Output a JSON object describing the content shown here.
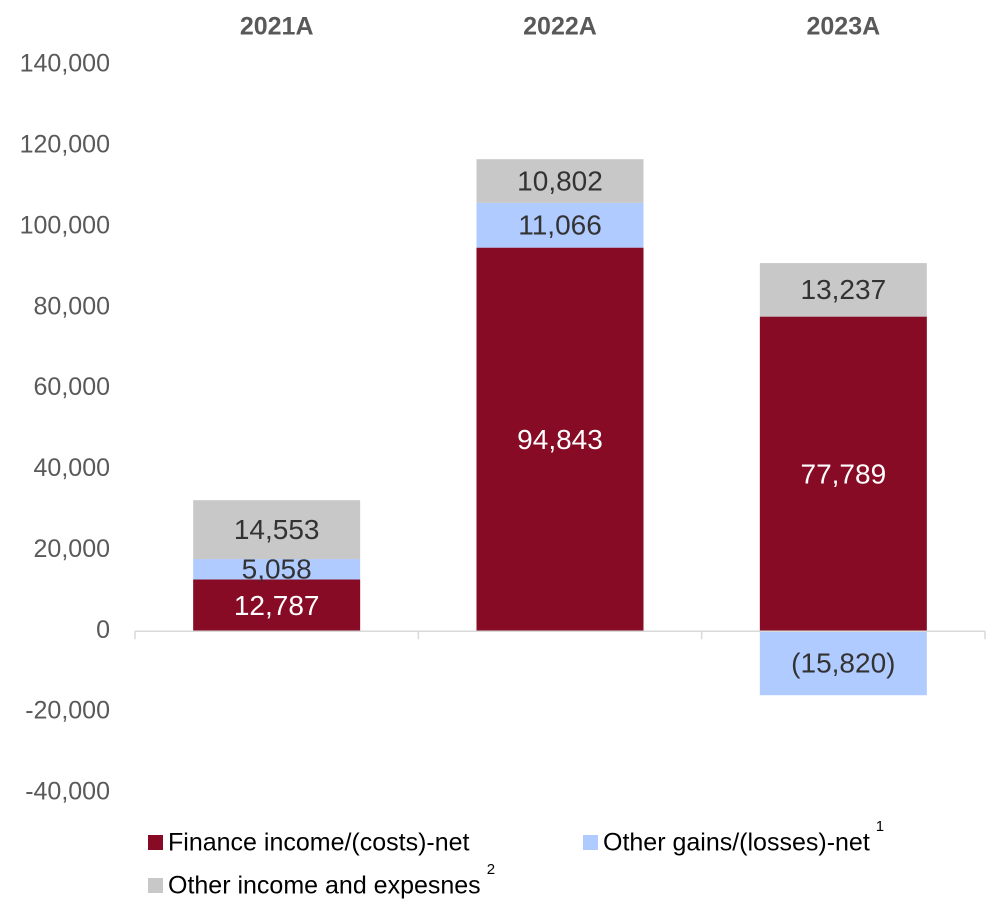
{
  "chart_data": {
    "type": "stacked_bar",
    "categories": [
      "2021A",
      "2022A",
      "2023A"
    ],
    "series": [
      {
        "name": "Finance income/(costs)-net",
        "color": "#870b24",
        "label_color": "#ffffff",
        "values": [
          12787,
          94843,
          77789
        ],
        "value_labels": [
          "12,787",
          "94,843",
          "77,789"
        ]
      },
      {
        "name": "Other gains/(losses)-net",
        "note": "1",
        "color": "#b0cbff",
        "label_color": "#333333",
        "values": [
          5058,
          11066,
          -15820
        ],
        "value_labels": [
          "5,058",
          "11,066",
          "(15,820)"
        ]
      },
      {
        "name": "Other income and expesnes",
        "note": "2",
        "color": "#c8c8c8",
        "label_color": "#333333",
        "values": [
          14553,
          10802,
          13237
        ],
        "value_labels": [
          "14,553",
          "10,802",
          "13,237"
        ]
      }
    ],
    "ylim": [
      -40000,
      140000
    ],
    "yticks": [
      {
        "value": -40000,
        "label": "-40,000"
      },
      {
        "value": -20000,
        "label": "-20,000"
      },
      0,
      {
        "value": 20000,
        "label": "20,000"
      },
      {
        "value": 40000,
        "label": "40,000"
      },
      {
        "value": 60000,
        "label": "60,000"
      },
      {
        "value": 80000,
        "label": "80,000"
      },
      {
        "value": 100000,
        "label": "100,000"
      },
      {
        "value": 120000,
        "label": "120,000"
      },
      {
        "value": 140000,
        "label": "140,000"
      }
    ],
    "grid": false
  }
}
